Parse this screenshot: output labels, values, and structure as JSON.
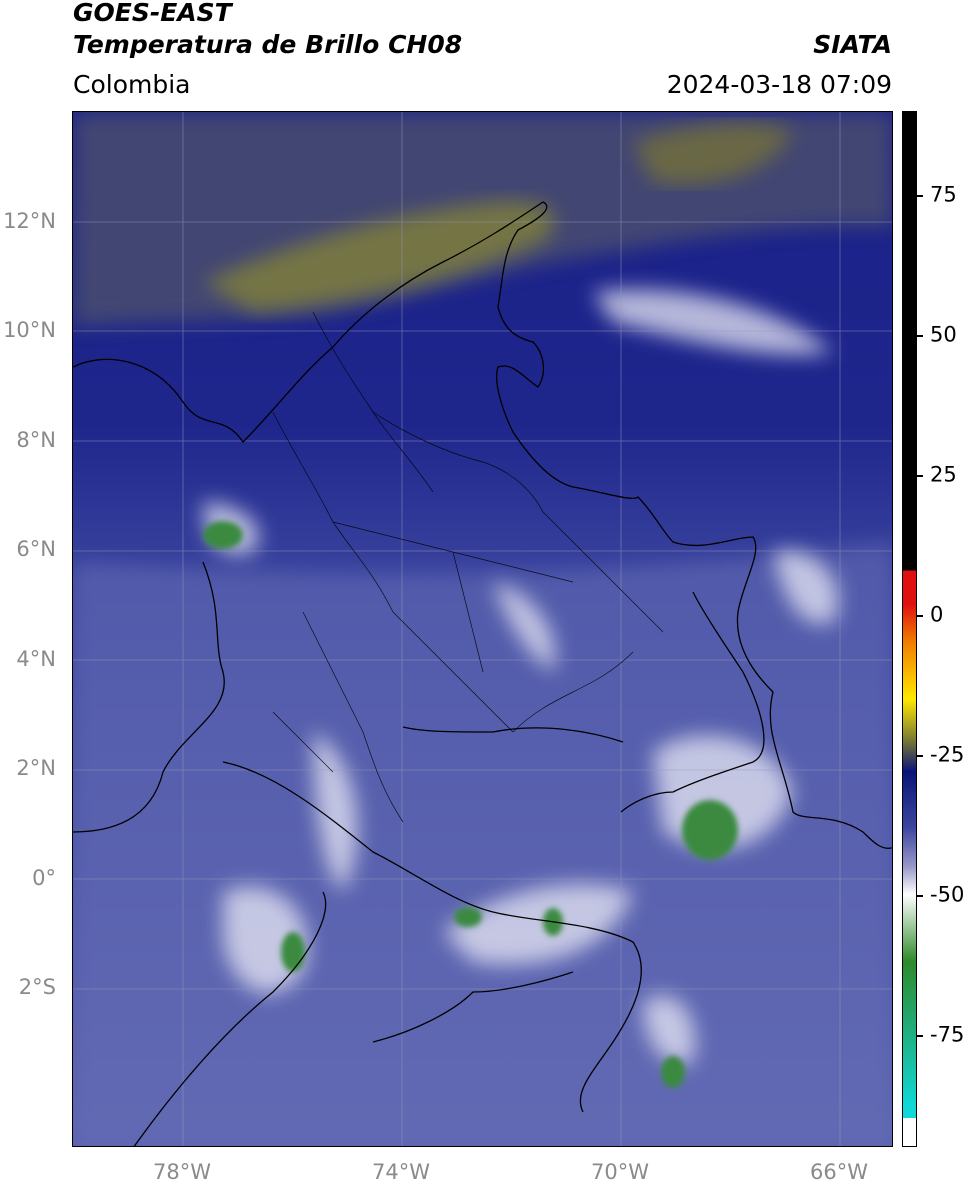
{
  "header": {
    "satellite": "GOES-EAST",
    "product": "Temperatura de Brillo CH08",
    "source": "SIATA",
    "region": "Colombia",
    "datetime": "2024-03-18 07:09"
  },
  "map": {
    "lat_ticks": [
      "12°N",
      "10°N",
      "8°N",
      "6°N",
      "4°N",
      "2°N",
      "0°",
      "2°S"
    ],
    "lon_ticks": [
      "78°W",
      "74°W",
      "70°W",
      "66°W"
    ]
  },
  "colorbar": {
    "ticks": [
      "75",
      "50",
      "25",
      "0",
      "-25",
      "-50",
      "-75"
    ],
    "tick_values": [
      75,
      50,
      25,
      0,
      -25,
      -50,
      -75
    ],
    "range": [
      -95,
      90
    ],
    "colors": {
      "warm_black": "#000000",
      "red": "#e01010",
      "orange": "#f08000",
      "yellow": "#ffe800",
      "olive": "#808030",
      "navy": "#0a1478",
      "mid_blue": "#3c46a0",
      "lavender": "#9898c8",
      "white": "#ffffff",
      "green": "#2e8a2a",
      "cyan": "#10d8d8"
    }
  }
}
